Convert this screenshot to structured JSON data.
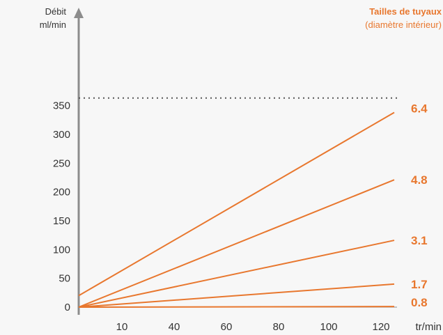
{
  "colors": {
    "accent": "#e8772e",
    "axis": "#8c8c8c",
    "text": "#333333",
    "background": "#f7f7f7"
  },
  "chart_data": {
    "type": "line",
    "title": "",
    "ylabel_line1": "Débit",
    "ylabel_line2": "ml/min",
    "xlabel": "tr/min",
    "legend": {
      "title": "Tailles de tuyaux",
      "subtitle": "(diamètre intérieur)"
    },
    "x_ticks": [
      "10",
      "40",
      "60",
      "80",
      "100",
      "120"
    ],
    "y_ticks": [
      "0",
      "50",
      "100",
      "150",
      "200",
      "250",
      "300",
      "350"
    ],
    "y_tick_values": [
      0,
      50,
      100,
      150,
      200,
      250,
      300,
      350
    ],
    "ylim": [
      0,
      400
    ],
    "max_line_value": 363,
    "grid": false,
    "series": [
      {
        "name": "6.4",
        "start": 20,
        "end": 338
      },
      {
        "name": "4.8",
        "start": 0,
        "end": 221
      },
      {
        "name": "3.1",
        "start": 0,
        "end": 116
      },
      {
        "name": "1.7",
        "start": 0,
        "end": 40
      },
      {
        "name": "0.8",
        "start": 0,
        "end": 1
      }
    ]
  }
}
